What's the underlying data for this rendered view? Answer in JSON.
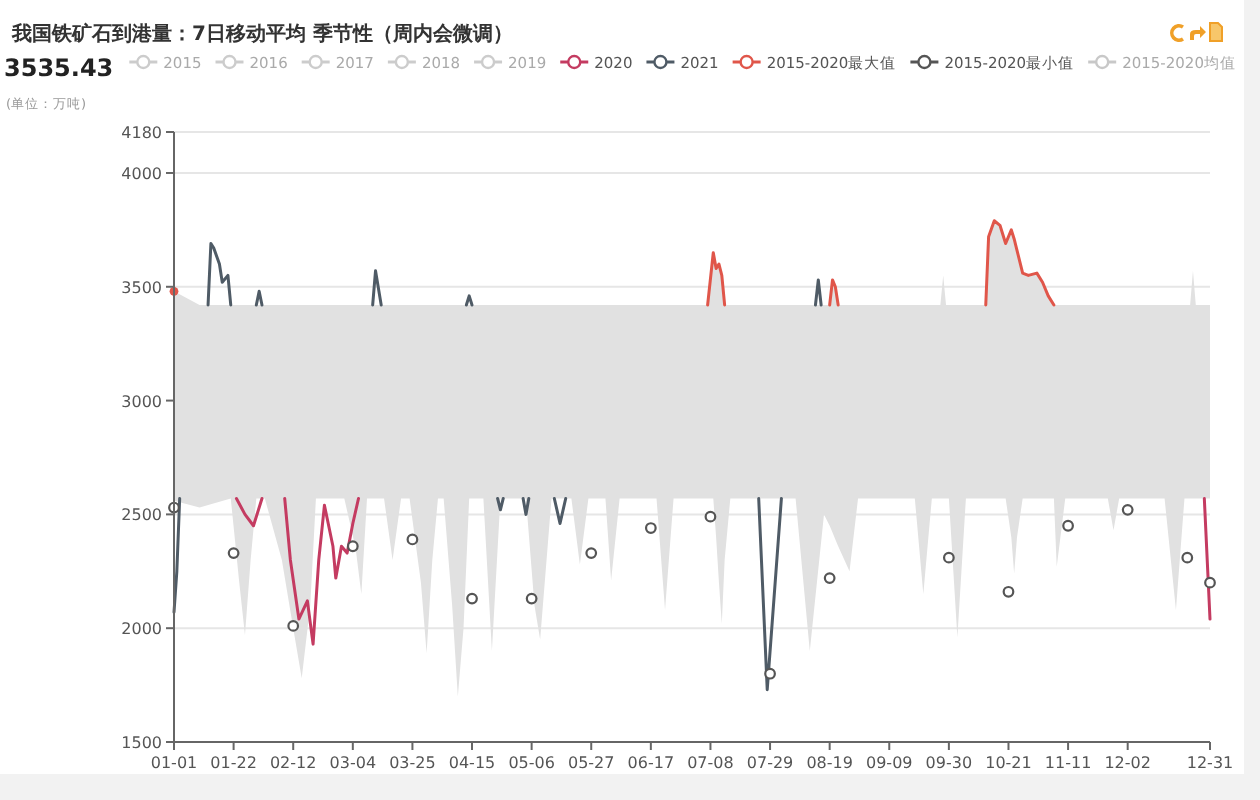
{
  "chart_data": {
    "type": "line",
    "title": "我国铁矿石到港量：7日移动平均 季节性（周内会微调）",
    "annotations": [
      "3535.43",
      "(单位：万吨)"
    ],
    "xlim": [
      "--01-01",
      "--12-31"
    ],
    "xticks": [
      {
        "value": "--01-01",
        "label": "01-01"
      },
      {
        "value": "--01-22",
        "label": "01-22"
      },
      {
        "value": "--02-12",
        "label": "02-12"
      },
      {
        "value": "--03-04",
        "label": "03-04"
      },
      {
        "value": "--03-25",
        "label": "03-25"
      },
      {
        "value": "--04-15",
        "label": "04-15"
      },
      {
        "value": "--05-06",
        "label": "05-06"
      },
      {
        "value": "--05-27",
        "label": "05-27"
      },
      {
        "value": "--06-17",
        "label": "06-17"
      },
      {
        "value": "--07-08",
        "label": "07-08"
      },
      {
        "value": "--07-29",
        "label": "07-29"
      },
      {
        "value": "--08-19",
        "label": "08-19"
      },
      {
        "value": "--09-09",
        "label": "09-09"
      },
      {
        "value": "--09-30",
        "label": "09-30"
      },
      {
        "value": "--10-21",
        "label": "10-21"
      },
      {
        "value": "--11-11",
        "label": "11-11"
      },
      {
        "value": "--12-02",
        "label": "12-02"
      },
      {
        "value": "--12-31",
        "label": "12-31"
      }
    ],
    "ylim": [
      1500,
      4180
    ],
    "yticks": [
      1500,
      2000,
      2500,
      3000,
      3500,
      4000,
      4180
    ],
    "grid": "y",
    "legend": "top",
    "series": [
      {
        "name": "2015",
        "color": "#cccccc"
      },
      {
        "name": "2016",
        "color": "#cccccc"
      },
      {
        "name": "2017",
        "color": "#cccccc"
      },
      {
        "name": "2018",
        "color": "#cccccc"
      },
      {
        "name": "2019",
        "color": "#cccccc"
      },
      {
        "name": "2020",
        "color": "#c43b61",
        "x": [
          "--01-23",
          "--01-26",
          "--01-29",
          "--02-01",
          "--02-02",
          "--02-09",
          "--02-11",
          "--02-14",
          "--02-17",
          "--02-19",
          "--02-21",
          "--02-23",
          "--02-26",
          "--02-27",
          "--02-29",
          "--03-02",
          "--03-04",
          "--03-06",
          "--03-07",
          "--12-29",
          "--12-31"
        ],
        "values": [
          2570,
          2500,
          2450,
          2570,
          null,
          2570,
          2300,
          2040,
          2120,
          1930,
          2300,
          2540,
          2360,
          2220,
          2360,
          2330,
          2460,
          2570,
          null,
          2570,
          2040
        ]
      },
      {
        "name": "2021",
        "color": "#4f5b66",
        "x": [
          "--01-01",
          "--01-02",
          "--01-03",
          "--01-04",
          "--01-13",
          "--01-14",
          "--01-15",
          "--01-17",
          "--01-18",
          "--01-20",
          "--01-21",
          "--01-22",
          "--01-30",
          "--01-31",
          "--02-01",
          "--02-02",
          "--03-11",
          "--03-12",
          "--03-14",
          "--03-15",
          "--04-13",
          "--04-14",
          "--04-15",
          "--04-16",
          "--04-24",
          "--04-25",
          "--04-26",
          "--04-27",
          "--05-03",
          "--05-04",
          "--05-05",
          "--05-06",
          "--05-14",
          "--05-16",
          "--05-18",
          "--05-19",
          "--07-25",
          "--07-28",
          "--08-02",
          "--08-03",
          "--08-14",
          "--08-15",
          "--08-16"
        ],
        "values": [
          2070,
          2250,
          2570,
          null,
          3420,
          3690,
          3670,
          3600,
          3520,
          3550,
          3420,
          null,
          3420,
          3480,
          3420,
          null,
          3420,
          3570,
          3420,
          null,
          3420,
          3460,
          3420,
          null,
          2570,
          2520,
          2570,
          null,
          2570,
          2500,
          2570,
          null,
          2570,
          2460,
          2570,
          null,
          2570,
          1730,
          2570,
          null,
          3420,
          3530,
          3420
        ]
      },
      {
        "name": "2015-2020最大值",
        "color": "#e0564a",
        "x": [
          "--01-01",
          "--01-10",
          "--01-21",
          "--01-24",
          "--01-26",
          "--01-28",
          "--01-30",
          "--02-02",
          "--02-08",
          "--02-12",
          "--02-15",
          "--02-18",
          "--02-20",
          "--03-01",
          "--03-05",
          "--03-07",
          "--03-09",
          "--03-15",
          "--03-18",
          "--03-21",
          "--03-24",
          "--03-28",
          "--03-30",
          "--04-01",
          "--04-03",
          "--04-05",
          "--04-08",
          "--04-10",
          "--04-12",
          "--04-14",
          "--04-19",
          "--04-22",
          "--04-25",
          "--05-04",
          "--05-07",
          "--05-09",
          "--05-13",
          "--05-20",
          "--05-23",
          "--05-26",
          "--06-01",
          "--06-03",
          "--06-06",
          "--06-19",
          "--06-22",
          "--06-25",
          "--07-07",
          "--07-09",
          "--07-10",
          "--07-11",
          "--07-12",
          "--07-13",
          "--07-15",
          "--08-07",
          "--08-12",
          "--08-17",
          "--08-19",
          "--08-20",
          "--08-21",
          "--08-22",
          "--08-26",
          "--08-29",
          "--09-18",
          "--09-21",
          "--09-24",
          "--09-27",
          "--09-28",
          "--09-29",
          "--09-30",
          "--10-03",
          "--10-06",
          "--10-13",
          "--10-14",
          "--10-16",
          "--10-18",
          "--10-20",
          "--10-22",
          "--10-23",
          "--10-24",
          "--10-26",
          "--10-28",
          "--10-31",
          "--11-02",
          "--11-04",
          "--11-06",
          "--11-07",
          "--11-10",
          "--11-25",
          "--11-27",
          "--11-29",
          "--12-15",
          "--12-19",
          "--12-22",
          "--12-24",
          "--12-25",
          "--12-26",
          "--12-31"
        ],
        "values": [
          3480,
          null,
          null,
          null,
          null,
          null,
          null,
          null,
          null,
          null,
          null,
          null,
          null,
          null,
          null,
          null,
          null,
          null,
          null,
          null,
          null,
          null,
          null,
          null,
          null,
          null,
          null,
          null,
          null,
          null,
          null,
          null,
          null,
          null,
          null,
          null,
          null,
          null,
          null,
          null,
          null,
          null,
          null,
          null,
          null,
          null,
          3420,
          3650,
          3580,
          3600,
          3550,
          3420,
          null,
          null,
          null,
          null,
          3420,
          3530,
          3500,
          3420,
          null,
          null,
          null,
          null,
          null,
          null,
          null,
          null,
          null,
          null,
          null,
          3420,
          3720,
          3790,
          3770,
          3690,
          3750,
          3710,
          3660,
          3560,
          3550,
          3560,
          3520,
          3460,
          3420,
          null,
          null,
          null,
          null,
          null,
          null,
          null,
          null,
          null,
          null,
          null,
          null
        ],
        "lower": [
          2560,
          2530,
          2570,
          2200,
          1970,
          2300,
          2570,
          2570,
          2300,
          2000,
          1780,
          2100,
          2570,
          2570,
          2350,
          2150,
          2570,
          2570,
          2300,
          2570,
          2570,
          2200,
          1890,
          2300,
          2570,
          2570,
          2100,
          1700,
          2000,
          2570,
          2570,
          1900,
          2570,
          2570,
          2100,
          1950,
          2570,
          2570,
          2280,
          2570,
          2570,
          2210,
          2570,
          2570,
          2080,
          2570,
          2570,
          2570,
          2400,
          2200,
          2020,
          2300,
          2570,
          2570,
          1900,
          2500,
          2450,
          2420,
          2390,
          2360,
          2250,
          2570,
          2570,
          2150,
          2570,
          2570,
          2570,
          2570,
          2570,
          1960,
          2570,
          2570,
          2570,
          2570,
          2570,
          2570,
          2400,
          2240,
          2400,
          2570,
          2570,
          2570,
          2570,
          2570,
          2570,
          2270,
          2570,
          2570,
          2430,
          2570,
          2570,
          2080,
          2570,
          2570,
          2570,
          2570,
          2570
        ],
        "upper": [
          3480,
          3420,
          3420,
          3420,
          3420,
          3420,
          3420,
          3420,
          3420,
          3420,
          3420,
          3420,
          3420,
          3420,
          3420,
          3420,
          3420,
          3420,
          3420,
          3420,
          3420,
          3420,
          3420,
          3420,
          3420,
          3420,
          3420,
          3420,
          3420,
          3420,
          3420,
          3420,
          3420,
          3420,
          3420,
          3420,
          3420,
          3420,
          3420,
          3420,
          3420,
          3420,
          3420,
          3420,
          3420,
          3420,
          3420,
          3650,
          3580,
          3600,
          3550,
          3420,
          3420,
          3420,
          3420,
          3420,
          3420,
          3530,
          3500,
          3420,
          3420,
          3420,
          3420,
          3420,
          3420,
          3420,
          3550,
          3420,
          3420,
          3420,
          3420,
          3420,
          3720,
          3790,
          3770,
          3690,
          3750,
          3710,
          3660,
          3560,
          3550,
          3560,
          3520,
          3460,
          3420,
          3420,
          3420,
          3420,
          3420,
          3420,
          3420,
          3420,
          3420,
          3420,
          3570,
          3420,
          3420
        ]
      },
      {
        "name": "2015-2020最小值",
        "color": "#555555",
        "type": "scatter",
        "marker": "circle",
        "x": [
          "--01-01",
          "--01-22",
          "--02-12",
          "--03-04",
          "--03-25",
          "--04-15",
          "--05-06",
          "--05-27",
          "--06-17",
          "--07-08",
          "--07-29",
          "--08-19",
          "--09-30",
          "--10-21",
          "--11-11",
          "--12-02",
          "--12-23",
          "--12-31"
        ],
        "values": [
          2530,
          2330,
          2010,
          2360,
          2390,
          2130,
          2130,
          2330,
          2440,
          2490,
          1800,
          2220,
          2310,
          2160,
          2450,
          2520,
          2310,
          2200
        ]
      },
      {
        "name": "2015-2020均值",
        "color": "#c8c8c8"
      }
    ]
  }
}
